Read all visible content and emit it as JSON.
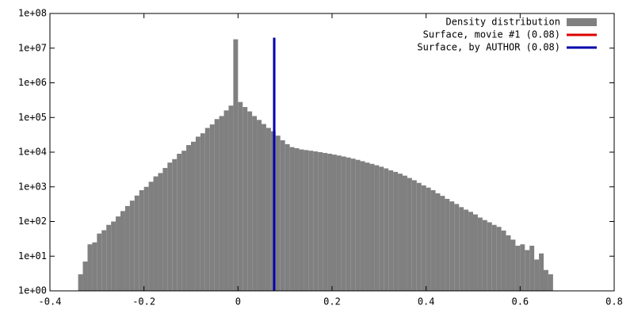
{
  "chart_data": {
    "type": "histogram",
    "log_y": true,
    "bins": [
      -0.34,
      -0.33,
      -0.32,
      -0.31,
      -0.3,
      -0.29,
      -0.28,
      -0.27,
      -0.26,
      -0.25,
      -0.24,
      -0.23,
      -0.22,
      -0.21,
      -0.2,
      -0.19,
      -0.18,
      -0.17,
      -0.16,
      -0.15,
      -0.14,
      -0.13,
      -0.12,
      -0.11,
      -0.1,
      -0.09,
      -0.08,
      -0.07,
      -0.06,
      -0.05,
      -0.04,
      -0.03,
      -0.02,
      -0.01,
      0.0,
      0.01,
      0.02,
      0.03,
      0.04,
      0.05,
      0.06,
      0.07,
      0.08,
      0.09,
      0.1,
      0.11,
      0.12,
      0.13,
      0.14,
      0.15,
      0.16,
      0.17,
      0.18,
      0.19,
      0.2,
      0.21,
      0.22,
      0.23,
      0.24,
      0.25,
      0.26,
      0.27,
      0.28,
      0.29,
      0.3,
      0.31,
      0.32,
      0.33,
      0.34,
      0.35,
      0.36,
      0.37,
      0.38,
      0.39,
      0.4,
      0.41,
      0.42,
      0.43,
      0.44,
      0.45,
      0.46,
      0.47,
      0.48,
      0.49,
      0.5,
      0.51,
      0.52,
      0.53,
      0.54,
      0.55,
      0.56,
      0.57,
      0.58,
      0.59,
      0.6,
      0.61,
      0.62,
      0.63,
      0.64,
      0.65,
      0.66,
      0.67
    ],
    "counts": [
      3,
      7,
      22,
      25,
      45,
      56,
      80,
      100,
      140,
      200,
      280,
      400,
      560,
      800,
      1000,
      1400,
      2000,
      2500,
      3500,
      5000,
      6300,
      9000,
      11000,
      16000,
      20000,
      28000,
      35000,
      50000,
      63000,
      90000,
      110000,
      160000,
      220000,
      18000000,
      280000,
      200000,
      150000,
      110000,
      85000,
      65000,
      50000,
      40000,
      30000,
      22000,
      17000,
      14000,
      13000,
      12000,
      11500,
      11000,
      10500,
      10000,
      9500,
      9000,
      8500,
      8000,
      7500,
      7000,
      6500,
      6000,
      5500,
      5000,
      4600,
      4200,
      3800,
      3400,
      3000,
      2700,
      2400,
      2100,
      1800,
      1550,
      1300,
      1100,
      950,
      800,
      650,
      550,
      450,
      380,
      320,
      260,
      220,
      190,
      160,
      130,
      110,
      95,
      80,
      70,
      55,
      40,
      30,
      20,
      22,
      15,
      20,
      8,
      12,
      4,
      3
    ],
    "hist_name": "Density distribution",
    "hist_color": "#808080",
    "series": [
      {
        "name": "Surface, movie #1 (0.08)",
        "color": "#dd0000",
        "x": 0.077,
        "values": [
          1,
          20000000
        ]
      },
      {
        "name": "Surface, by AUTHOR (0.08)",
        "color": "#0000aa",
        "x": 0.077,
        "values": [
          1,
          20000000
        ]
      }
    ],
    "xlim": [
      -0.4,
      0.8
    ],
    "xticks": [
      -0.4,
      -0.2,
      0,
      0.2,
      0.4,
      0.6,
      0.8
    ],
    "ylim": [
      1,
      100000000
    ],
    "yticks": [
      {
        "value": 1,
        "label": "1e+00"
      },
      {
        "value": 10,
        "label": "1e+01"
      },
      {
        "value": 100,
        "label": "1e+02"
      },
      {
        "value": 1000,
        "label": "1e+03"
      },
      {
        "value": 10000,
        "label": "1e+04"
      },
      {
        "value": 100000,
        "label": "1e+05"
      },
      {
        "value": 1000000,
        "label": "1e+06"
      },
      {
        "value": 10000000,
        "label": "1e+07"
      },
      {
        "value": 100000000,
        "label": "1e+08"
      }
    ],
    "legend": "top-right"
  }
}
